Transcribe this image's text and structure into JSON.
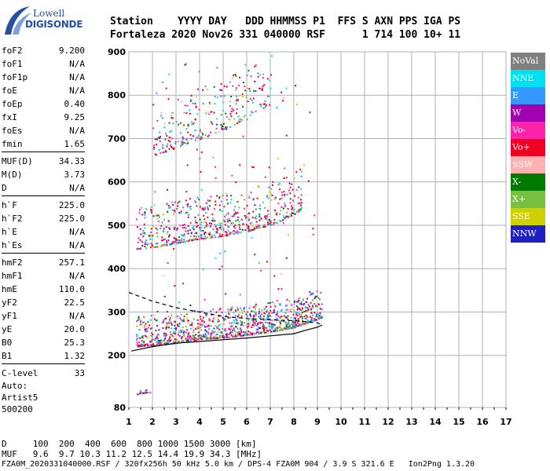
{
  "logo": {
    "line1": "Lowell",
    "line2": "DIGISONDE"
  },
  "header": {
    "line1": "Station    YYYY DAY   DDD HHMMSS P1  FFS S AXN PPS IGA PS",
    "line2": "Fortaleza 2020 Nov26 331 040000 RSF      1 714 100 10+ 11"
  },
  "params": [
    {
      "label": "foF2",
      "value": "9.200"
    },
    {
      "label": "foF1",
      "value": "N/A"
    },
    {
      "label": "foF1p",
      "value": "N/A"
    },
    {
      "label": "foE",
      "value": "N/A"
    },
    {
      "label": "foEp",
      "value": "0.40"
    },
    {
      "label": "fxI",
      "value": "9.25"
    },
    {
      "label": "foEs",
      "value": "N/A"
    },
    {
      "label": "fmin",
      "value": "1.65"
    },
    {
      "sep": true
    },
    {
      "label": "MUF(D)",
      "value": "34.33"
    },
    {
      "label": "M(D)",
      "value": "3.73"
    },
    {
      "label": "D",
      "value": "N/A"
    },
    {
      "sep": true
    },
    {
      "label": "h`F",
      "value": "225.0"
    },
    {
      "label": "h`F2",
      "value": "225.0"
    },
    {
      "label": "h`E",
      "value": "N/A"
    },
    {
      "label": "h`Es",
      "value": "N/A"
    },
    {
      "sep": true
    },
    {
      "label": "hmF2",
      "value": "257.1"
    },
    {
      "label": "hmF1",
      "value": "N/A"
    },
    {
      "label": "hmE",
      "value": "110.0"
    },
    {
      "label": "yF2",
      "value": "22.5"
    },
    {
      "label": "yF1",
      "value": "N/A"
    },
    {
      "label": "yE",
      "value": "20.0"
    },
    {
      "label": "B0",
      "value": "25.3"
    },
    {
      "label": "B1",
      "value": "1.32"
    },
    {
      "sep": true
    },
    {
      "label": "C-level",
      "value": "33"
    }
  ],
  "auto": {
    "line1": "Auto:",
    "line2": "Artist5",
    "line3": "500200"
  },
  "bottom": {
    "row1": "D     100  200  400  600  800 1000 1500 3000 [km]",
    "row2": "MUF   9.6  9.7 10.3 11.2 12.5 14.4 19.9 34.3 [MHz]",
    "row3": "FZA0M_2020331040000.RSF / 320fx256h 50 kHz 5.0 km / DPS-4 FZA0M 904 / 3.9 S 321.6 E   Ion2Png 1.3.20"
  },
  "legend": [
    {
      "label": "NoVal",
      "color": "#808080"
    },
    {
      "label": "NNE",
      "color": "#00e0f0"
    },
    {
      "label": "E",
      "color": "#3399ff"
    },
    {
      "label": "W",
      "color": "#a000b0"
    },
    {
      "label": "Vo-",
      "color": "#ff22aa"
    },
    {
      "label": "Vo+",
      "color": "#ee0022"
    },
    {
      "label": "SSW",
      "color": "#ffb0b0"
    },
    {
      "label": "X-",
      "color": "#007a00"
    },
    {
      "label": "X+",
      "color": "#77c040"
    },
    {
      "label": "SSE",
      "color": "#d0d000"
    },
    {
      "label": "NNW",
      "color": "#2020c0"
    }
  ],
  "chart_data": {
    "type": "scatter",
    "xlim": [
      1,
      17
    ],
    "ylim": [
      80,
      900
    ],
    "x_ticks": [
      1,
      2,
      3,
      4,
      5,
      6,
      7,
      8,
      9,
      10,
      11,
      12,
      13,
      14,
      15,
      16,
      17
    ],
    "y_ticks": [
      80,
      200,
      300,
      400,
      500,
      600,
      700,
      800,
      900
    ],
    "grid": true,
    "legend_position": "right",
    "traces": [
      {
        "name": "F2 first hop",
        "x": [
          1.3,
          2,
          3,
          4,
          5,
          6,
          7,
          7.5,
          8,
          8.5,
          9,
          9.2
        ],
        "y": [
          232,
          234,
          240,
          248,
          252,
          258,
          266,
          270,
          276,
          285,
          295,
          300
        ]
      },
      {
        "name": "F2 second hop",
        "x": [
          1.3,
          2,
          3,
          4,
          5,
          6,
          7,
          7.5,
          8,
          8.3
        ],
        "y": [
          455,
          458,
          468,
          478,
          485,
          495,
          510,
          520,
          535,
          545
        ]
      },
      {
        "name": "F2 third hop",
        "x": [
          2,
          3,
          4,
          5,
          6,
          7
        ],
        "y": [
          670,
          690,
          710,
          730,
          760,
          790
        ]
      },
      {
        "name": "Es low",
        "x": [
          1.3,
          1.6,
          1.9
        ],
        "y": [
          115,
          118,
          120
        ]
      }
    ],
    "profile_curve": {
      "x": [
        1.1,
        2,
        3,
        4,
        5,
        6,
        7,
        8,
        8.5,
        9,
        9.2
      ],
      "y": [
        210,
        220,
        228,
        232,
        236,
        240,
        245,
        250,
        258,
        265,
        270
      ]
    },
    "dashed_curve": {
      "x": [
        1,
        1.5,
        2,
        3,
        4,
        5,
        6,
        7,
        8,
        9,
        9.2
      ],
      "y": [
        345,
        335,
        325,
        310,
        300,
        290,
        285,
        282,
        280,
        275,
        270
      ]
    }
  }
}
